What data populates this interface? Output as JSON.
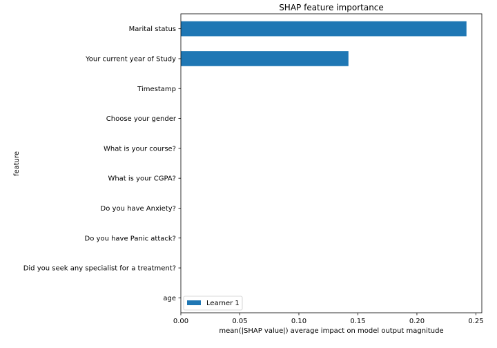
{
  "chart_data": {
    "type": "bar",
    "orientation": "horizontal",
    "title": "SHAP feature importance",
    "xlabel": "mean(|SHAP value|) average impact on model output magnitude",
    "ylabel": "feature",
    "categories": [
      "Marital status",
      "Your current year of Study",
      "Timestamp",
      "Choose your gender",
      "What is your course?",
      "What is your CGPA?",
      "Do you have Anxiety?",
      "Do you have Panic attack?",
      "Did you seek any specialist for a treatment?",
      "age"
    ],
    "series": [
      {
        "name": "Learner 1",
        "color": "#1f77b4",
        "values": [
          0.242,
          0.142,
          0,
          0,
          0,
          0,
          0,
          0,
          0,
          0
        ]
      }
    ],
    "xlim": [
      0,
      0.255
    ],
    "xticks": [
      "0.00",
      "0.05",
      "0.10",
      "0.15",
      "0.20",
      "0.25"
    ],
    "grid": false,
    "legend_position": "lower-left"
  }
}
